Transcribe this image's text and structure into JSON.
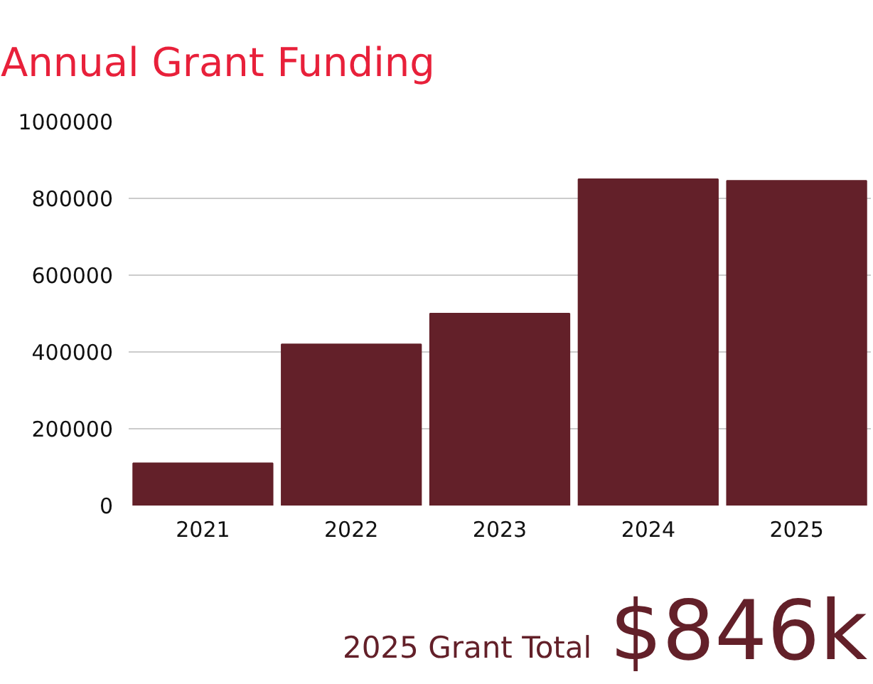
{
  "chart_data": {
    "type": "bar",
    "title": "Annual Grant Funding",
    "categories": [
      "2021",
      "2022",
      "2023",
      "2024",
      "2025"
    ],
    "values": [
      110000,
      420000,
      500000,
      850000,
      846000
    ],
    "color": "#632029",
    "ylim": [
      0,
      1000000
    ],
    "yticks": [
      0,
      200000,
      400000,
      600000,
      800000,
      1000000
    ],
    "grid": "y",
    "annotations": [
      "2025 Grant Total",
      "$846k"
    ]
  }
}
